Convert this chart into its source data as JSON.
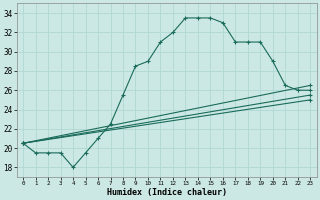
{
  "xlabel": "Humidex (Indice chaleur)",
  "bg_color": "#cce8e4",
  "grid_color": "#b0d8d4",
  "line_color": "#1a6b5a",
  "xlim": [
    -0.5,
    23.5
  ],
  "ylim": [
    17.0,
    35.0
  ],
  "yticks": [
    18,
    20,
    22,
    24,
    26,
    28,
    30,
    32,
    34
  ],
  "xtick_labels": [
    "0",
    "1",
    "2",
    "3",
    "4",
    "5",
    "6",
    "7",
    "8",
    "9",
    "10",
    "11",
    "12",
    "13",
    "14",
    "15",
    "16",
    "17",
    "18",
    "19",
    "20",
    "21",
    "22",
    "23"
  ],
  "xtick_positions": [
    0,
    1,
    2,
    3,
    4,
    5,
    6,
    7,
    8,
    9,
    10,
    11,
    12,
    13,
    14,
    15,
    16,
    17,
    18,
    19,
    20,
    21,
    22,
    23
  ],
  "series": [
    {
      "x": [
        0,
        1,
        2,
        3,
        4,
        5,
        6,
        7,
        8,
        9,
        10,
        11,
        12,
        13,
        14,
        15,
        16,
        17,
        18,
        19,
        20,
        21,
        22,
        23
      ],
      "y": [
        20.5,
        19.5,
        19.5,
        19.5,
        18.0,
        19.5,
        21.0,
        22.5,
        25.5,
        28.5,
        29.0,
        31.0,
        32.0,
        33.5,
        33.5,
        33.5,
        33.0,
        31.0,
        31.0,
        31.0,
        29.0,
        26.5,
        26.0,
        26.0
      ]
    },
    {
      "x": [
        0,
        23
      ],
      "y": [
        20.5,
        26.5
      ]
    },
    {
      "x": [
        0,
        23
      ],
      "y": [
        20.5,
        25.5
      ]
    },
    {
      "x": [
        0,
        23
      ],
      "y": [
        20.5,
        25.0
      ]
    }
  ]
}
